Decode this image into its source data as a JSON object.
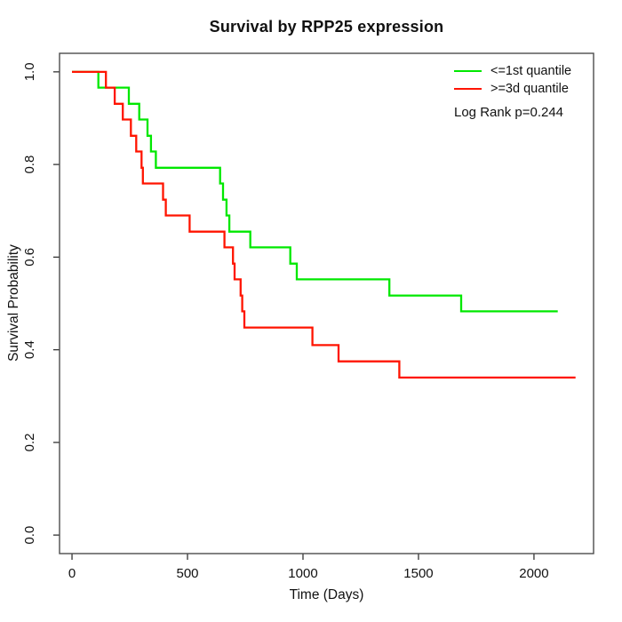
{
  "title": "Survival by RPP25 expression",
  "axes": {
    "xlabel": "Time (Days)",
    "ylabel": "Survival Probability"
  },
  "legend": {
    "items": [
      {
        "label": "<=1st quantile",
        "color": "#00e800"
      },
      {
        "label": ">=3d quantile",
        "color": "#ff1400"
      }
    ],
    "annotation": "Log Rank p=0.244"
  },
  "chart_data": {
    "type": "line",
    "subtype": "kaplan_meier_step_curve",
    "title": "Survival by RPP25 expression",
    "xlabel": "Time (Days)",
    "ylabel": "Survival Probability",
    "xlim": [
      -54,
      2258
    ],
    "ylim": [
      -0.04,
      1.04
    ],
    "grid": false,
    "legend_position": "top-right",
    "annotation": "Log Rank p=0.244",
    "xticks": [
      0,
      500,
      1000,
      1500,
      2000
    ],
    "xtick_labels": [
      "0",
      "500",
      "1000",
      "1500",
      "2000"
    ],
    "yticks": [
      1.0,
      0.8,
      0.6,
      0.4,
      0.2,
      0.0
    ],
    "ytick_labels": [
      "1.0",
      "0.8",
      "0.6",
      "0.4",
      "0.2",
      "0.0"
    ],
    "frame_color": "#4d4d4d",
    "tick_color": "#333333",
    "text_color": "#111111",
    "series": [
      {
        "name": "<=1st quantile",
        "color": "#00e800",
        "start_time": 0,
        "start_survival": 1.0,
        "times": [
          114,
          246,
          291,
          327,
          342,
          363,
          641,
          654,
          669,
          681,
          772,
          945,
          973,
          1374,
          1685
        ],
        "survival": [
          0.966,
          0.931,
          0.897,
          0.862,
          0.828,
          0.793,
          0.759,
          0.724,
          0.69,
          0.655,
          0.621,
          0.586,
          0.552,
          0.517,
          0.483
        ],
        "end_time": 2103
      },
      {
        "name": ">=3d quantile",
        "color": "#ff1400",
        "start_time": 0,
        "start_survival": 1.0,
        "times": [
          147,
          185,
          220,
          255,
          278,
          301,
          307,
          394,
          406,
          509,
          660,
          697,
          704,
          730,
          737,
          746,
          1041,
          1154,
          1417
        ],
        "survival": [
          0.966,
          0.931,
          0.897,
          0.862,
          0.828,
          0.793,
          0.759,
          0.724,
          0.69,
          0.655,
          0.621,
          0.586,
          0.552,
          0.517,
          0.483,
          0.448,
          0.41,
          0.375,
          0.34
        ],
        "end_time": 2180
      }
    ]
  }
}
